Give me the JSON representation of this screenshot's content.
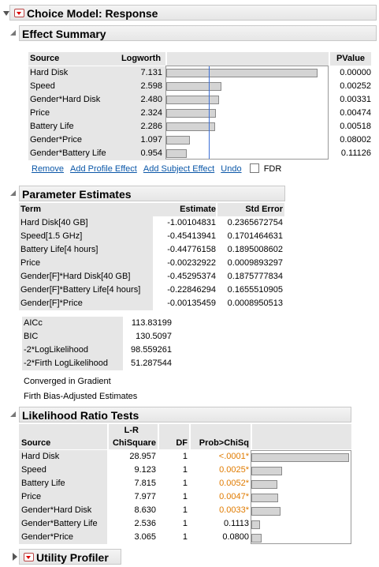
{
  "main_header": {
    "title": "Choice Model: Response"
  },
  "effect_summary": {
    "title": "Effect Summary",
    "columns": {
      "source": "Source",
      "logworth": "Logworth",
      "pvalue": "PValue"
    },
    "rows": [
      {
        "source": "Hard Disk",
        "logworth": "7.131",
        "pvalue": "0.00000",
        "value": 7.131
      },
      {
        "source": "Speed",
        "logworth": "2.598",
        "pvalue": "0.00252",
        "value": 2.598
      },
      {
        "source": "Gender*Hard Disk",
        "logworth": "2.480",
        "pvalue": "0.00331",
        "value": 2.48
      },
      {
        "source": "Price",
        "logworth": "2.324",
        "pvalue": "0.00474",
        "value": 2.324
      },
      {
        "source": "Battery Life",
        "logworth": "2.286",
        "pvalue": "0.00518",
        "value": 2.286
      },
      {
        "source": "Gender*Price",
        "logworth": "1.097",
        "pvalue": "0.08002",
        "value": 1.097
      },
      {
        "source": "Gender*Battery Life",
        "logworth": "0.954",
        "pvalue": "0.11126",
        "value": 0.954
      }
    ],
    "actions": {
      "remove": "Remove",
      "add_profile": "Add Profile Effect",
      "add_subject": "Add Subject Effect",
      "undo": "Undo",
      "fdr": "FDR"
    }
  },
  "parameter_estimates": {
    "title": "Parameter Estimates",
    "columns": {
      "term": "Term",
      "estimate": "Estimate",
      "std_error": "Std Error"
    },
    "rows": [
      {
        "term": "Hard Disk[40 GB]",
        "estimate": "-1.00104831",
        "std_error": "0.2365672754"
      },
      {
        "term": "Speed[1.5 GHz]",
        "estimate": "-0.45413941",
        "std_error": "0.1701464631"
      },
      {
        "term": "Battery Life[4 hours]",
        "estimate": "-0.44776158",
        "std_error": "0.1895008602"
      },
      {
        "term": "Price",
        "estimate": "-0.00232922",
        "std_error": "0.0009893297"
      },
      {
        "term": "Gender[F]*Hard Disk[40 GB]",
        "estimate": "-0.45295374",
        "std_error": "0.1875777834"
      },
      {
        "term": "Gender[F]*Battery Life[4 hours]",
        "estimate": "-0.22846294",
        "std_error": "0.1655510905"
      },
      {
        "term": "Gender[F]*Price",
        "estimate": "-0.00135459",
        "std_error": "0.0008950513"
      }
    ],
    "fit_stats": [
      {
        "label": "AICc",
        "value": "113.83199"
      },
      {
        "label": "BIC",
        "value": "130.5097"
      },
      {
        "label": "-2*LogLikelihood",
        "value": "98.559261"
      },
      {
        "label": "-2*Firth LogLikelihood",
        "value": "51.287544"
      }
    ],
    "notes": {
      "converged": "Converged in Gradient",
      "firth": "Firth Bias-Adjusted Estimates"
    }
  },
  "likelihood_ratio_tests": {
    "title": "Likelihood Ratio Tests",
    "columns": {
      "source": "Source",
      "lr": "L-R",
      "chisquare": "ChiSquare",
      "df": "DF",
      "prob": "Prob>ChiSq"
    },
    "rows": [
      {
        "source": "Hard Disk",
        "chisq": "28.957",
        "df": "1",
        "prob": "<.0001*",
        "signif": true,
        "value": 28.957
      },
      {
        "source": "Speed",
        "chisq": "9.123",
        "df": "1",
        "prob": "0.0025*",
        "signif": true,
        "value": 9.123
      },
      {
        "source": "Battery Life",
        "chisq": "7.815",
        "df": "1",
        "prob": "0.0052*",
        "signif": true,
        "value": 7.815
      },
      {
        "source": "Price",
        "chisq": "7.977",
        "df": "1",
        "prob": "0.0047*",
        "signif": true,
        "value": 7.977
      },
      {
        "source": "Gender*Hard Disk",
        "chisq": "8.630",
        "df": "1",
        "prob": "0.0033*",
        "signif": true,
        "value": 8.63
      },
      {
        "source": "Gender*Battery Life",
        "chisq": "2.536",
        "df": "1",
        "prob": "0.1113",
        "signif": false,
        "value": 2.536
      },
      {
        "source": "Gender*Price",
        "chisq": "3.065",
        "df": "1",
        "prob": "0.0800",
        "signif": false,
        "value": 3.065
      }
    ]
  },
  "utility_profiler": {
    "title": "Utility Profiler"
  },
  "colors": {
    "significant": "#e07b00",
    "link": "#0b57a8",
    "reference_line": "#3b6fd6"
  }
}
